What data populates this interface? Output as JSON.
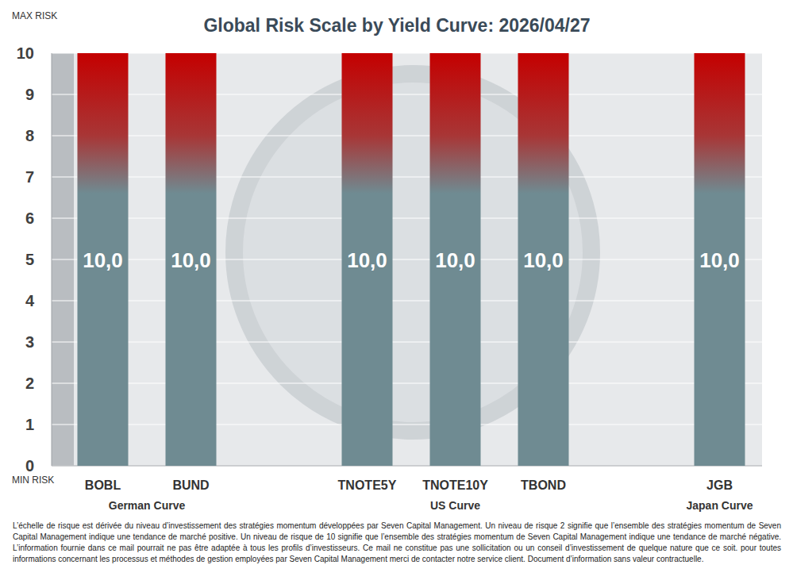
{
  "chart_data": {
    "type": "bar",
    "title": "Global Risk Scale by Yield Curve: 2026/04/27",
    "categories": [
      "BOBL",
      "BUND",
      null,
      "TNOTE5Y",
      "TNOTE10Y",
      "TBOND",
      null,
      "JGB"
    ],
    "values": [
      10,
      10,
      null,
      10,
      10,
      10,
      null,
      10
    ],
    "value_labels": [
      "10,0",
      "10,0",
      null,
      "10,0",
      "10,0",
      "10,0",
      null,
      "10,0"
    ],
    "color": "#6f8b92",
    "ylim": [
      0,
      10
    ],
    "yticks": [
      0,
      1,
      2,
      3,
      4,
      5,
      6,
      7,
      8,
      9,
      10
    ],
    "grid": true,
    "data_labels": true,
    "annotations": [
      {
        "text": "MAX RISK",
        "anchor": "ymax"
      },
      {
        "text": "MIN RISK",
        "anchor": "ymin"
      },
      {
        "text": "German Curve",
        "span": [
          "BOBL",
          "BUND"
        ]
      },
      {
        "text": "US Curve",
        "span": [
          "TNOTE5Y",
          "TBOND"
        ]
      },
      {
        "text": "Japan Curve",
        "span": [
          "JGB",
          "JGB"
        ]
      }
    ],
    "footnote": "L’échelle de risque est dérivée du niveau d’investissement des stratégies momentum développées par Seven Capital Management. Un niveau de risque 2 signifie que l’ensemble des stratégies momentum de Seven Capital Management indique une tendance de marché positive. Un niveau de risque de 10 signifie que l’ensemble des stratégies momentum de Seven Capital Management indique une tendance de marché négative. L’information fournie dans ce mail pourrait ne pas être adaptée à tous les profils d’investisseurs. Ce mail ne constitue pas une sollicitation ou un conseil d’investissement de quelque nature que ce soit. pour toutes informations concernant les processus et méthodes de gestion employées par Seven Capital Management merci de contacter notre service client. Document d’information sans valeur contractuelle."
  }
}
